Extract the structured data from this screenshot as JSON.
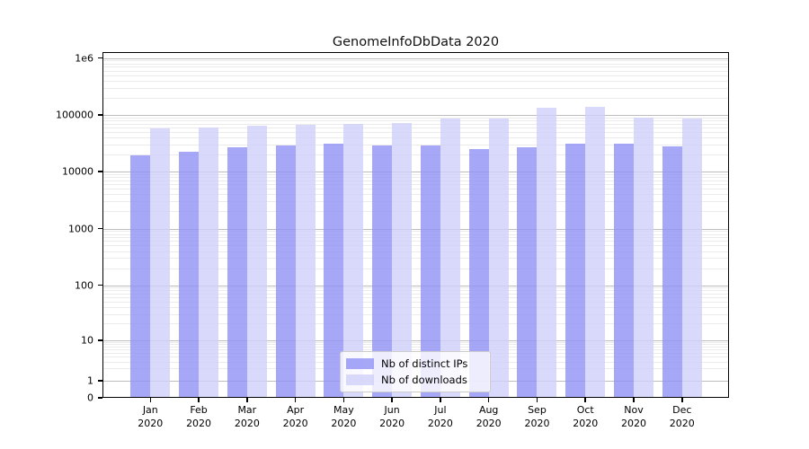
{
  "chart_data": {
    "type": "bar",
    "title": "GenomeInfoDbData 2020",
    "months": [
      "Jan",
      "Feb",
      "Mar",
      "Apr",
      "May",
      "Jun",
      "Jul",
      "Aug",
      "Sep",
      "Oct",
      "Nov",
      "Dec"
    ],
    "year_label": "2020",
    "series": [
      {
        "name": "Nb of distinct IPs",
        "color": "#9191f6",
        "alpha": 0.8,
        "values": [
          19500,
          22000,
          26500,
          28500,
          30500,
          28500,
          28500,
          25000,
          27200,
          31500,
          30700,
          28000
        ]
      },
      {
        "name": "Nb of downloads",
        "color": "#d0d0fa",
        "alpha": 0.8,
        "values": [
          57000,
          59500,
          63500,
          66000,
          68500,
          72000,
          86500,
          86500,
          133000,
          138000,
          90000,
          86500
        ]
      }
    ],
    "y_axis": {
      "scale": "symlog",
      "tick_values": [
        0,
        1,
        10,
        100,
        1000,
        10000,
        100000,
        1000000
      ],
      "tick_labels": [
        "0",
        "1",
        "10",
        "100",
        "1000",
        "10000",
        "100000",
        "1e6"
      ],
      "ylim": [
        0,
        1300000
      ]
    },
    "x_axis": {
      "tick_labels_line2": "2020"
    },
    "legend": {
      "position": "lower center",
      "entries": [
        "Nb of distinct IPs",
        "Nb of downloads"
      ]
    },
    "grid": true,
    "colors": {
      "major_grid": "#bdbdbd",
      "minor_grid": "#ebebeb",
      "spine": "#000000",
      "background": "#ffffff"
    }
  }
}
